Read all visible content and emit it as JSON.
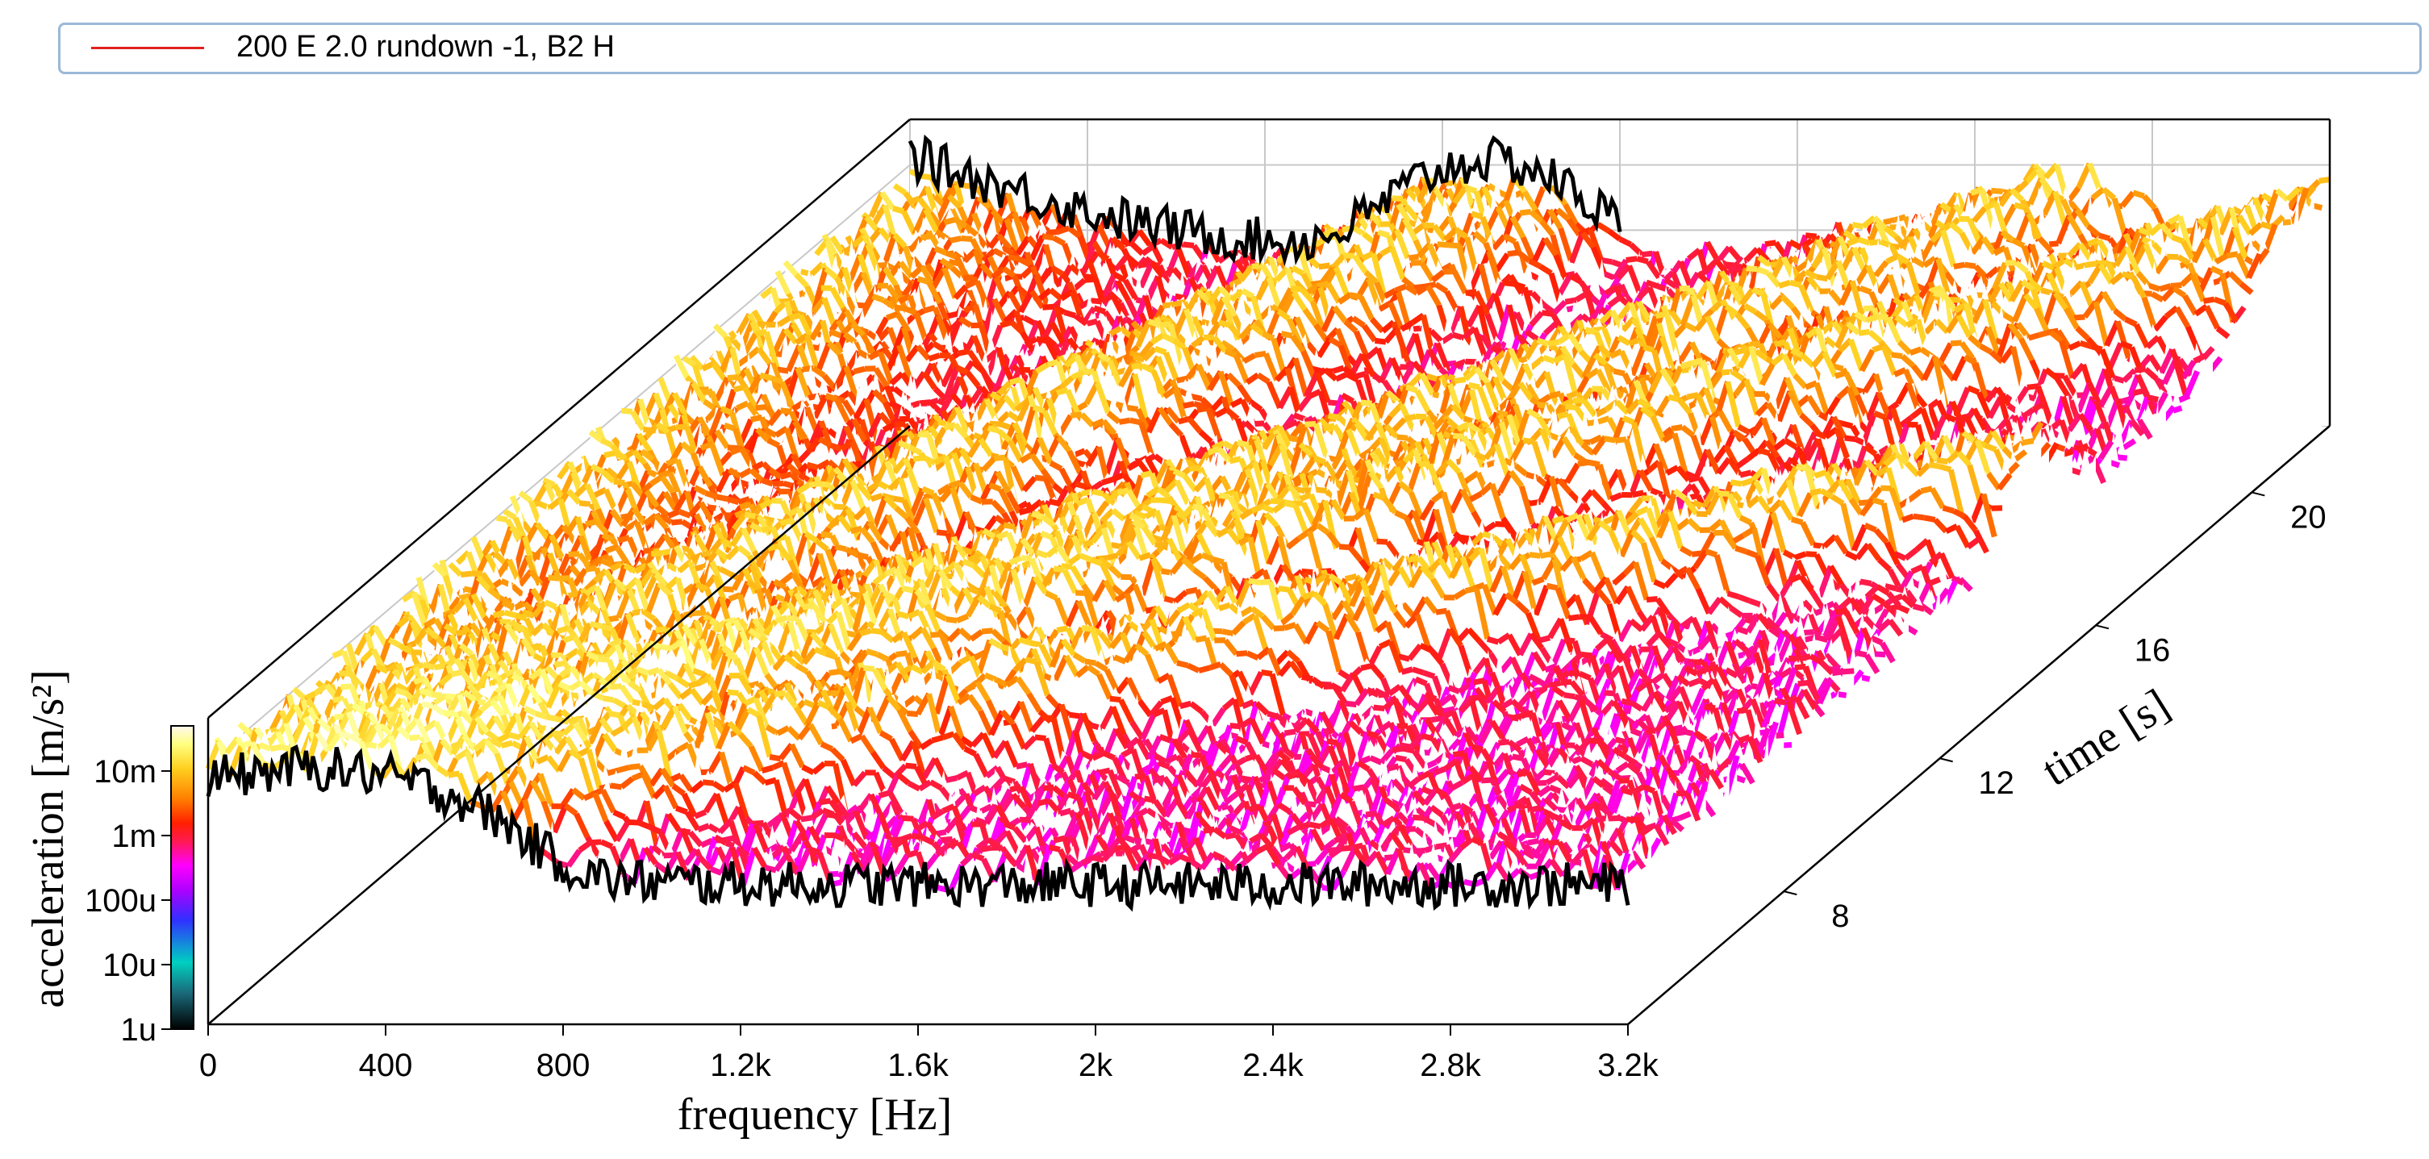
{
  "legend": {
    "label": "200 E 2.0 rundown -1, B2 H",
    "line_color": "#e02020"
  },
  "chart_data": {
    "type": "waterfall",
    "title": "",
    "xlabel": "frequency [Hz]",
    "ylabel": "time [s]",
    "zlabel": "acceleration [m/s²]",
    "x_range": [
      0,
      3200
    ],
    "x_ticks": [
      0,
      400,
      800,
      1200,
      1600,
      2000,
      2400,
      2800,
      3200
    ],
    "x_tick_labels": [
      "0",
      "400",
      "800",
      "1.2k",
      "1.6k",
      "2k",
      "2.4k",
      "2.8k",
      "3.2k"
    ],
    "y_range": [
      4,
      22
    ],
    "y_ticks": [
      8,
      12,
      16,
      20
    ],
    "y_tick_labels": [
      "8",
      "12",
      "16",
      "20"
    ],
    "z_scale": "log",
    "z_range": [
      1e-06,
      0.05
    ],
    "z_ticks": [
      1e-06,
      1e-05,
      0.0001,
      0.001,
      0.01
    ],
    "z_tick_labels": [
      "1u",
      "10u",
      "100u",
      "1m",
      "10m"
    ],
    "colormap": [
      "#000000",
      "#1a6a7a",
      "#00d0c0",
      "#3030ff",
      "#b000ff",
      "#ff00ff",
      "#ff1a50",
      "#ff2000",
      "#ff8000",
      "#ffd020",
      "#ffff80",
      "#fff8f0"
    ],
    "order_tracks": [
      {
        "freq_at_t4": 120,
        "freq_at_t22": 1300
      },
      {
        "freq_at_t4": 240,
        "freq_at_t22": 2600
      },
      {
        "freq_at_t4": 300,
        "freq_at_t22": 3300
      },
      {
        "freq_at_t4": 480,
        "freq_at_t22": 5200
      }
    ],
    "front_spectrum_time": 4,
    "back_spectrum_time": 22,
    "grid": true
  }
}
